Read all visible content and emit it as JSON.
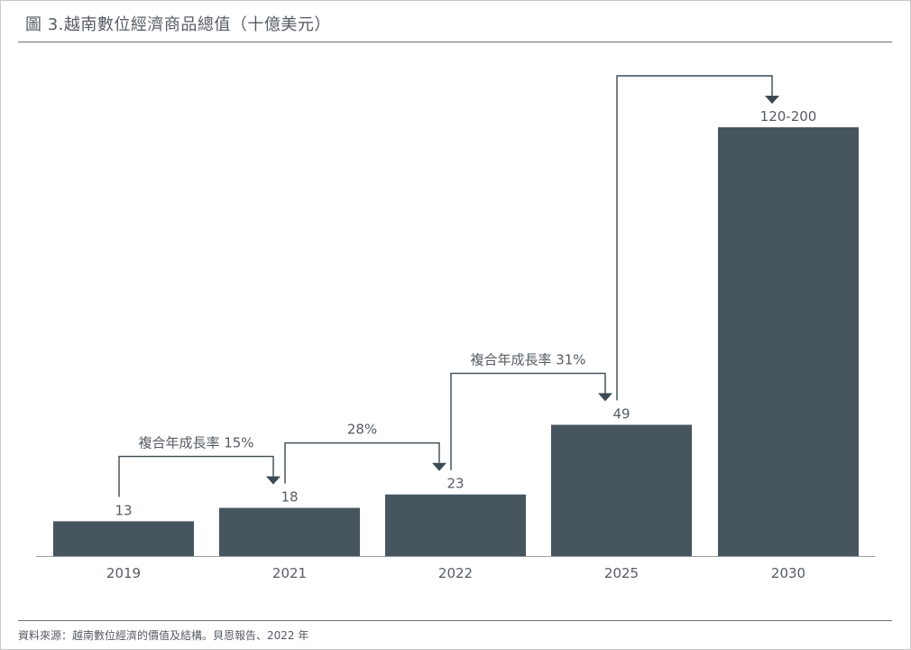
{
  "title": "圖 3.越南數位經濟商品總值（十億美元）",
  "source": "資料來源：越南數位經濟的價值及結構。貝恩報告、2022 年",
  "colors": {
    "bar": "#47555e",
    "text": "#555c63",
    "axis": "#9aa0a6",
    "arrow": "#3c4a53"
  },
  "chart_data": {
    "type": "bar",
    "categories": [
      "2019",
      "2021",
      "2022",
      "2025",
      "2030"
    ],
    "values": [
      13,
      18,
      23,
      49,
      160
    ],
    "value_labels": [
      "13",
      "18",
      "23",
      "49",
      "120-200"
    ],
    "annotations": [
      {
        "from": "2019",
        "to": "2021",
        "label": "複合年成長率 15%"
      },
      {
        "from": "2021",
        "to": "2022",
        "label": "28%"
      },
      {
        "from": "2022",
        "to": "2025",
        "label": "複合年成長率 31%"
      },
      {
        "from": "2025",
        "to": "2030",
        "label": ""
      }
    ],
    "ylim": [
      0,
      160
    ],
    "grid": false,
    "legend": "none"
  }
}
